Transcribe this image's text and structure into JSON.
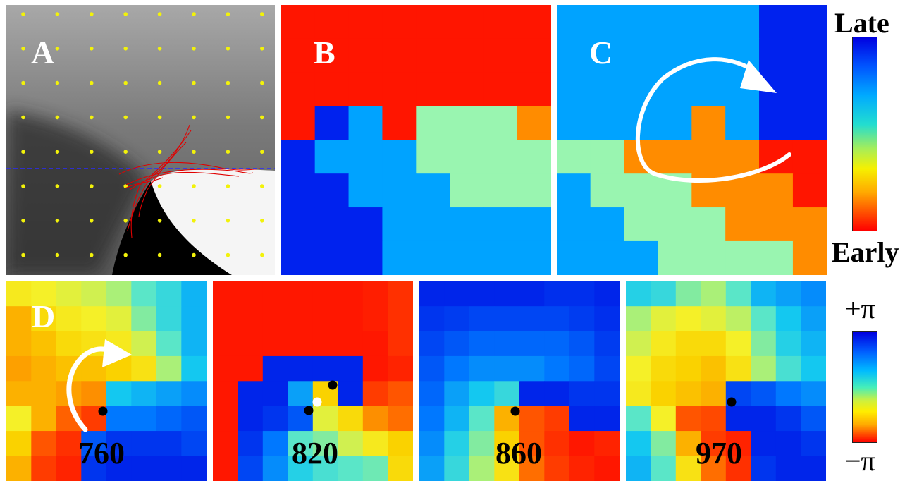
{
  "panels": {
    "a": {
      "label": "A"
    },
    "b": {
      "label": "B"
    },
    "c": {
      "label": "C"
    },
    "d": {
      "label": "D"
    }
  },
  "frames": [
    "760",
    "820",
    "860",
    "970"
  ],
  "colorbar_top": {
    "high": "Late",
    "low": "Early"
  },
  "colorbar_bottom": {
    "high": "+π",
    "low": "−π"
  },
  "colors": {
    "red": "#ff1500",
    "orange": "#ff8c00",
    "mint": "#99f5b0",
    "sky": "#00a3ff",
    "blue": "#0022ee",
    "dot_yellow": "#f2f20a",
    "trace_red": "#e00000",
    "dashed_blue": "#2a2aff"
  },
  "grid_b": [
    "RRRRRRRR",
    "RRRRRRRR",
    "RRRRRRRR",
    "RUSRMMMO",
    "USSSMMMM",
    "UUSSSMMM",
    "UUUSSSSS",
    "UUUSSSSS"
  ],
  "grid_c": [
    "SSSSSSUU",
    "SSSSSSUU",
    "SSSSSSUU",
    "SSSSOSUU",
    "MMOOOORR",
    "SMMMOOOR",
    "SSMMMOOO",
    "SSSMMMMO"
  ],
  "grids_d": [
    [
      [
        -0.15,
        -0.1,
        -0.05,
        0.0,
        0.1,
        0.3,
        0.4,
        0.55
      ],
      [
        -0.4,
        -0.25,
        -0.15,
        -0.1,
        -0.05,
        0.2,
        0.4,
        0.55
      ],
      [
        -0.4,
        -0.35,
        -0.25,
        -0.2,
        -0.15,
        0.0,
        0.3,
        0.55
      ],
      [
        -0.45,
        -0.4,
        -0.35,
        -0.35,
        -0.3,
        -0.2,
        0.1,
        0.5
      ],
      [
        -0.4,
        -0.4,
        -0.45,
        -0.5,
        0.5,
        0.55,
        0.6,
        0.65
      ],
      [
        -0.1,
        -0.4,
        -0.65,
        -0.8,
        0.7,
        0.7,
        0.75,
        0.8
      ],
      [
        -0.3,
        -0.7,
        -0.85,
        0.8,
        0.9,
        0.9,
        0.9,
        0.85
      ],
      [
        -0.4,
        -0.8,
        -0.9,
        0.9,
        0.95,
        0.95,
        0.95,
        0.95
      ]
    ],
    [
      [
        -0.95,
        -0.95,
        -0.95,
        -0.95,
        -0.95,
        -0.95,
        -0.92,
        -0.85
      ],
      [
        -0.95,
        -0.95,
        -0.95,
        -0.95,
        -0.95,
        -0.95,
        -0.92,
        -0.85
      ],
      [
        -0.95,
        -0.95,
        -0.95,
        -0.95,
        -0.95,
        -0.95,
        -0.95,
        -0.85
      ],
      [
        -0.95,
        -0.95,
        0.95,
        0.95,
        0.95,
        0.95,
        -0.95,
        -0.9
      ],
      [
        -0.95,
        0.95,
        0.95,
        0.6,
        -0.3,
        0.95,
        -0.8,
        -0.7
      ],
      [
        -0.95,
        0.95,
        0.9,
        0.8,
        -0.05,
        -0.25,
        -0.5,
        -0.6
      ],
      [
        -0.95,
        0.9,
        0.7,
        0.3,
        0.2,
        0.0,
        -0.15,
        -0.3
      ],
      [
        -0.95,
        0.85,
        0.65,
        0.45,
        0.35,
        0.3,
        0.25,
        -0.25
      ]
    ],
    [
      [
        0.95,
        0.95,
        0.95,
        0.95,
        0.95,
        0.92,
        0.92,
        0.95
      ],
      [
        0.9,
        0.88,
        0.85,
        0.85,
        0.85,
        0.85,
        0.88,
        0.92
      ],
      [
        0.85,
        0.8,
        0.75,
        0.75,
        0.75,
        0.75,
        0.8,
        0.88
      ],
      [
        0.8,
        0.7,
        0.65,
        0.65,
        0.65,
        0.7,
        0.75,
        0.85
      ],
      [
        0.75,
        0.6,
        0.5,
        0.4,
        0.95,
        0.95,
        0.9,
        0.9
      ],
      [
        0.7,
        0.55,
        0.3,
        -0.4,
        -0.7,
        -0.8,
        0.95,
        0.95
      ],
      [
        0.65,
        0.45,
        0.2,
        -0.3,
        -0.7,
        -0.85,
        -0.95,
        -0.9
      ],
      [
        0.6,
        0.4,
        0.1,
        -0.2,
        -0.6,
        -0.8,
        -0.9,
        -0.95
      ]
    ],
    [
      [
        0.45,
        0.4,
        0.2,
        0.1,
        0.3,
        0.55,
        0.6,
        0.65
      ],
      [
        0.1,
        -0.05,
        -0.1,
        -0.05,
        0.05,
        0.3,
        0.5,
        0.6
      ],
      [
        0.0,
        -0.15,
        -0.25,
        -0.25,
        -0.1,
        0.2,
        0.45,
        0.55
      ],
      [
        -0.1,
        -0.25,
        -0.3,
        -0.35,
        -0.2,
        0.1,
        0.35,
        0.5
      ],
      [
        -0.15,
        -0.3,
        -0.35,
        -0.4,
        0.85,
        0.8,
        0.7,
        0.65
      ],
      [
        0.3,
        -0.1,
        -0.7,
        -0.75,
        0.95,
        0.95,
        0.9,
        0.8
      ],
      [
        0.5,
        0.2,
        -0.4,
        -0.8,
        -0.9,
        0.95,
        0.95,
        0.9
      ],
      [
        0.55,
        0.3,
        -0.2,
        -0.6,
        -0.85,
        0.9,
        0.95,
        0.95
      ]
    ]
  ],
  "chart_data": {
    "type": "heatmap",
    "note_free": "",
    "panels": [
      "A",
      "B",
      "C",
      "D"
    ],
    "frames": [
      "760",
      "820",
      "860",
      "970"
    ],
    "colorbar_top_labels": [
      "Late",
      "Early"
    ],
    "colorbar_bottom_labels": [
      "+π",
      "−π"
    ]
  }
}
